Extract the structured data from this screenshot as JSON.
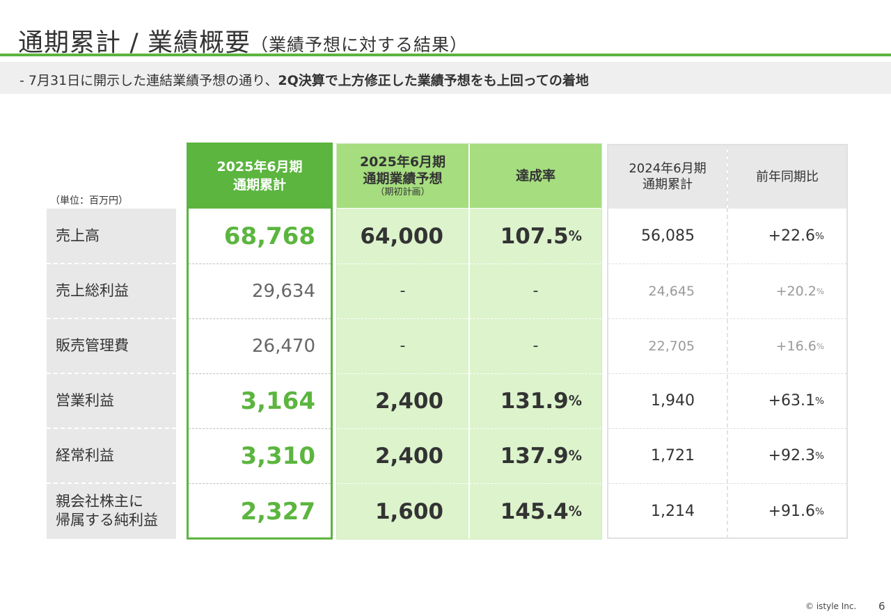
{
  "header": {
    "title_main": "通期累計 / 業績概要",
    "title_sub": "（業績予想に対する結果）"
  },
  "subtitle": {
    "prefix": "-  7月31日に開示した連結業績予想の通り、",
    "bold": "2Q決算で上方修正した業績予想をも上回っての着地"
  },
  "unit": "（単位：百万円）",
  "columns": {
    "actual": {
      "line1": "2025年6月期",
      "line2": "通期累計"
    },
    "forecast": {
      "line1": "2025年6月期",
      "line2": "通期業績予想",
      "note": "（期初計画）"
    },
    "achievement": {
      "label": "達成率"
    },
    "prev": {
      "line1": "2024年6月期",
      "line2": "通期累計"
    },
    "yoy": {
      "label": "前年同期比"
    }
  },
  "percent_sign": "%",
  "rows": [
    {
      "label": "売上高",
      "actual": "68,768",
      "forecast": "64,000",
      "achievement": "107.5",
      "prev": "56,085",
      "yoy": "+22.6",
      "highlight": true
    },
    {
      "label": "売上総利益",
      "actual": "29,634",
      "forecast": "-",
      "achievement": "-",
      "prev": "24,645",
      "yoy": "+20.2",
      "highlight": false
    },
    {
      "label": "販売管理費",
      "actual": "26,470",
      "forecast": "-",
      "achievement": "-",
      "prev": "22,705",
      "yoy": "+16.6",
      "highlight": false
    },
    {
      "label": "営業利益",
      "actual": "3,164",
      "forecast": "2,400",
      "achievement": "131.9",
      "prev": "1,940",
      "yoy": "+63.1",
      "highlight": true
    },
    {
      "label": "経常利益",
      "actual": "3,310",
      "forecast": "2,400",
      "achievement": "137.9",
      "prev": "1,721",
      "yoy": "+92.3",
      "highlight": true
    },
    {
      "label_line1": "親会社株主に",
      "label_line2": "帰属する純利益",
      "actual": "2,327",
      "forecast": "1,600",
      "achievement": "145.4",
      "prev": "1,214",
      "yoy": "+91.6",
      "highlight": true
    }
  ],
  "footer": {
    "copyright": "©  istyle Inc.",
    "page": "6"
  },
  "colors": {
    "accent": "#5bb53e",
    "forecast_head": "#a5dd7f",
    "forecast_body": "#dcf3cc",
    "gray": "#e8e8e8"
  }
}
